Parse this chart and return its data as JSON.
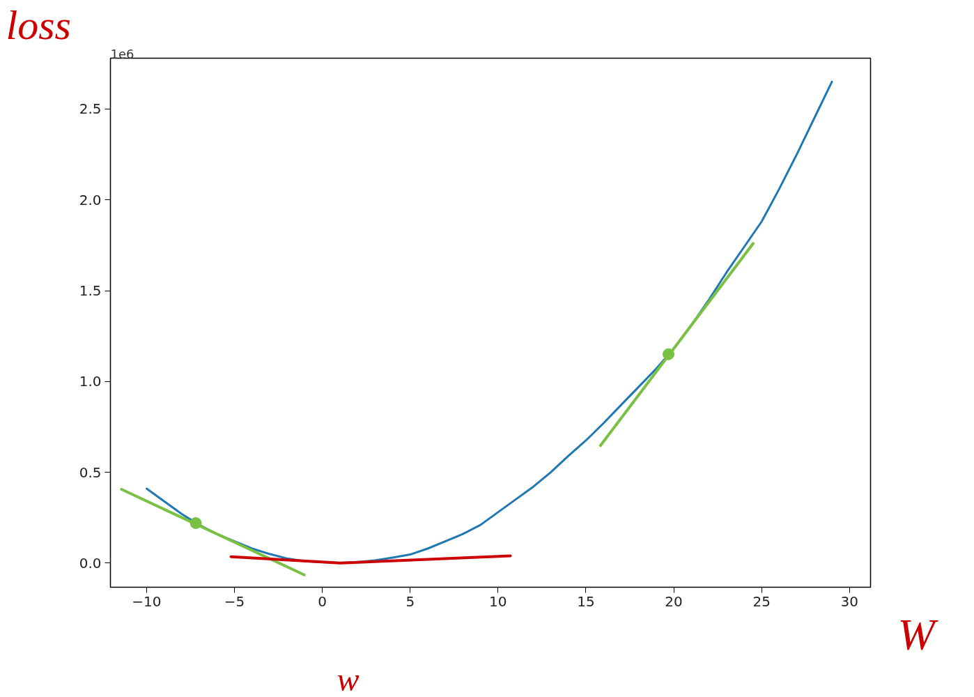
{
  "chart_data": {
    "type": "line",
    "xlim": [
      -12.06,
      31.2
    ],
    "ylim": [
      -0.133,
      2.78
    ],
    "xticks": [
      -10,
      -5,
      0,
      5,
      10,
      15,
      20,
      25,
      30
    ],
    "yticks": [
      {
        "value": 0,
        "label": "0.0"
      },
      0.5,
      {
        "value": 1,
        "label": "1.0"
      },
      1.5,
      {
        "value": 2,
        "label": "2.0"
      },
      2.5
    ],
    "series": [
      {
        "color": "#1f77b4",
        "x": [
          -10,
          -9,
          -8,
          -7,
          -6,
          -5,
          -4,
          -3,
          -2,
          -1,
          0,
          1,
          2,
          3,
          4,
          5,
          6,
          7,
          8,
          9,
          10,
          11,
          12,
          13,
          14,
          15,
          16,
          17,
          18,
          19,
          20,
          21,
          22,
          23,
          24,
          25,
          26,
          27,
          28,
          29
        ],
        "values": [
          0.41,
          0.34,
          0.27,
          0.21,
          0.16,
          0.12,
          0.08,
          0.05,
          0.025,
          0.01,
          0.005,
          0.0,
          0.005,
          0.015,
          0.03,
          0.047,
          0.08,
          0.12,
          0.16,
          0.21,
          0.28,
          0.35,
          0.42,
          0.5,
          0.59,
          0.675,
          0.77,
          0.87,
          0.97,
          1.07,
          1.18,
          1.31,
          1.45,
          1.6,
          1.74,
          1.88,
          2.06,
          2.25,
          2.45,
          2.65
        ]
      },
      {
        "color": "#7ac143",
        "x": [
          -11.43,
          -1.03
        ],
        "values": [
          0.406,
          -0.065
        ]
      },
      {
        "color": "#7ac143",
        "x": [
          15.83,
          24.52
        ],
        "values": [
          0.647,
          1.76
        ]
      },
      {
        "color": "#cc0000",
        "x": [
          -5.2,
          1,
          10.7
        ],
        "values": [
          0.035,
          0.0,
          0.04
        ]
      },
      {
        "type": "scatter",
        "marker": "circle",
        "color": "#7ac143",
        "x": [
          -7.2,
          19.7
        ],
        "values": [
          0.22,
          1.15
        ]
      }
    ],
    "annotations": [
      "1e6",
      "loss",
      "W",
      "w"
    ]
  }
}
